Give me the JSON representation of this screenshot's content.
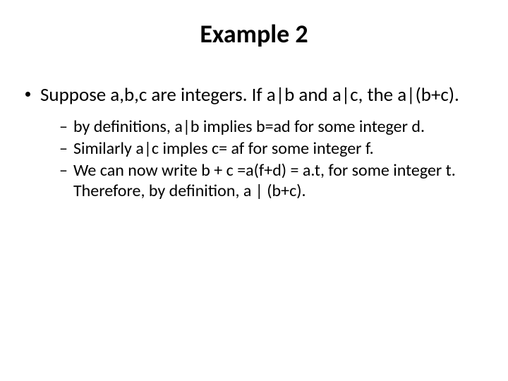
{
  "title": {
    "text": "Example 2",
    "fontsize": 36,
    "color": "#000000"
  },
  "body": {
    "main_bullet": {
      "text": "Suppose a,b,c are integers. If a|b and a|c, the a|(b+c).",
      "fontsize": 27,
      "color": "#000000",
      "bullet_color": "#000000"
    },
    "sub_bullets": {
      "fontsize": 24,
      "color": "#000000",
      "dash": "–",
      "items": [
        "by definitions, a|b implies  b=ad for some integer d.",
        " Similarly a|c imples c= af for some integer f.",
        "We can now write b + c =a(f+d) = a.t, for some integer t. Therefore, by definition, a | (b+c)."
      ]
    }
  },
  "background_color": "#ffffff"
}
